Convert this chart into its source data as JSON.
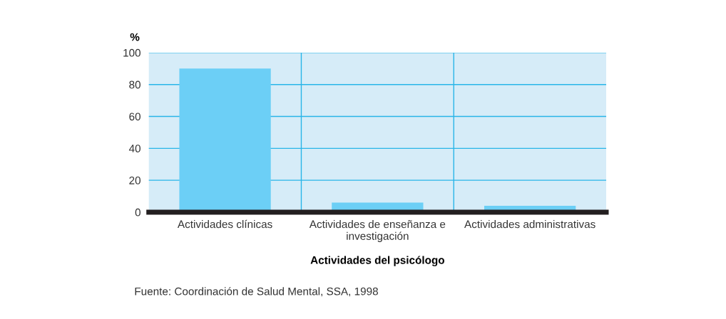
{
  "chart_data": {
    "type": "bar",
    "categories": [
      "Actividades clínicas",
      "Actividades de enseñanza e\ninvestigación",
      "Actividades administrativas"
    ],
    "series": [
      {
        "color": "#6ccff6",
        "values": [
          90,
          6,
          4
        ]
      }
    ],
    "ylabel": "%",
    "xlabel": "Actividades del psicólogo",
    "ylim": [
      0,
      100
    ],
    "yticks": [
      0,
      20,
      40,
      60,
      80,
      100
    ],
    "grid": true,
    "legend": false,
    "annotations": [
      "Fuente: Coordinación de Salud Mental, SSA, 1998"
    ]
  }
}
